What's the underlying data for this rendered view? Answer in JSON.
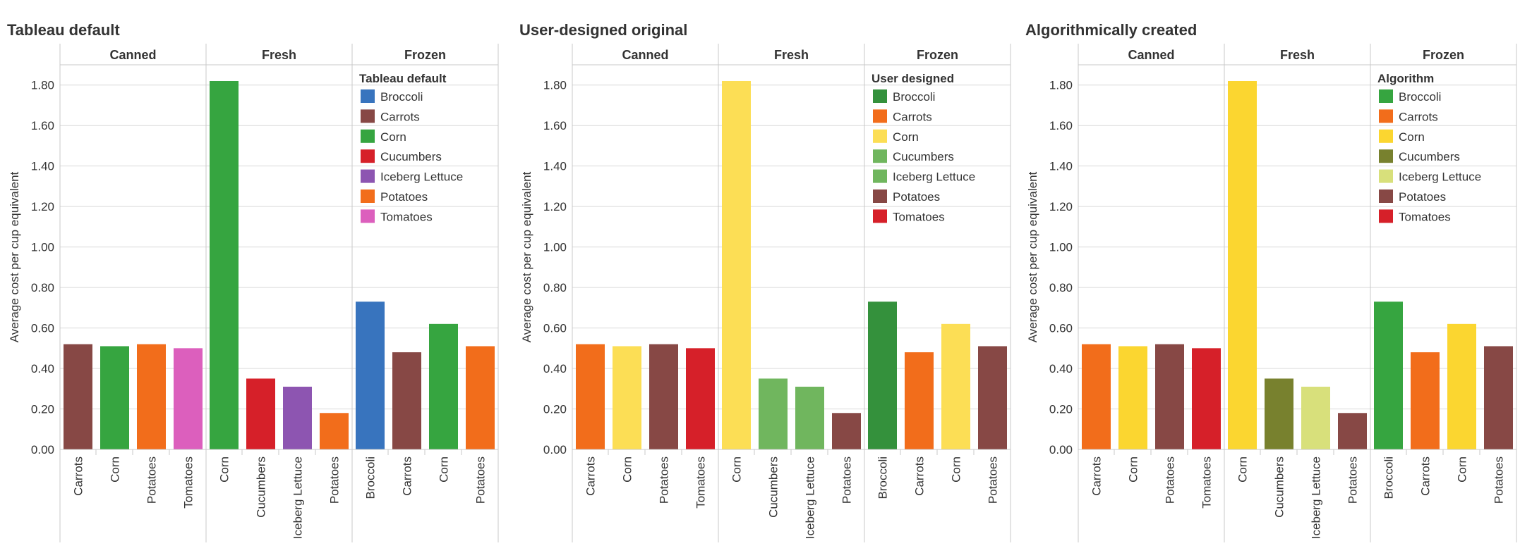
{
  "chart_data": [
    {
      "type": "bar",
      "title": "Tableau default",
      "ylabel": "Average cost per cup equivalent",
      "ylim": [
        0,
        1.9
      ],
      "yticks": [
        "0.00",
        "0.20",
        "0.40",
        "0.60",
        "0.80",
        "1.00",
        "1.20",
        "1.40",
        "1.60",
        "1.80"
      ],
      "legend": {
        "title": "Tableau default",
        "placement": "inside-right",
        "items": [
          {
            "label": "Broccoli",
            "color": "#3874be"
          },
          {
            "label": "Carrots",
            "color": "#874845"
          },
          {
            "label": "Corn",
            "color": "#36a540"
          },
          {
            "label": "Cucumbers",
            "color": "#d62029"
          },
          {
            "label": "Iceberg Lettuce",
            "color": "#8d55b1"
          },
          {
            "label": "Potatoes",
            "color": "#f26d1b"
          },
          {
            "label": "Tomatoes",
            "color": "#dc5fbd"
          }
        ]
      },
      "panels": [
        {
          "name": "Canned",
          "categories": [
            "Carrots",
            "Corn",
            "Potatoes",
            "Tomatoes"
          ],
          "values": [
            0.52,
            0.51,
            0.52,
            0.5
          ],
          "colors": [
            "#874845",
            "#36a540",
            "#f26d1b",
            "#dc5fbd"
          ]
        },
        {
          "name": "Fresh",
          "categories": [
            "Corn",
            "Cucumbers",
            "Iceberg Lettuce",
            "Potatoes"
          ],
          "values": [
            1.82,
            0.35,
            0.31,
            0.18
          ],
          "colors": [
            "#36a540",
            "#d62029",
            "#8d55b1",
            "#f26d1b"
          ]
        },
        {
          "name": "Frozen",
          "categories": [
            "Broccoli",
            "Carrots",
            "Corn",
            "Potatoes"
          ],
          "values": [
            0.73,
            0.48,
            0.62,
            0.51
          ],
          "colors": [
            "#3874be",
            "#874845",
            "#36a540",
            "#f26d1b"
          ]
        }
      ]
    },
    {
      "type": "bar",
      "title": "User-designed original",
      "ylabel": "Average cost per cup equivalent",
      "ylim": [
        0,
        1.9
      ],
      "yticks": [
        "0.00",
        "0.20",
        "0.40",
        "0.60",
        "0.80",
        "1.00",
        "1.20",
        "1.40",
        "1.60",
        "1.80"
      ],
      "legend": {
        "title": "User designed",
        "placement": "inside-right",
        "items": [
          {
            "label": "Broccoli",
            "color": "#34913c"
          },
          {
            "label": "Carrots",
            "color": "#f26d1b"
          },
          {
            "label": "Corn",
            "color": "#fcde55"
          },
          {
            "label": "Cucumbers",
            "color": "#70b65e"
          },
          {
            "label": "Iceberg Lettuce",
            "color": "#70b65e"
          },
          {
            "label": "Potatoes",
            "color": "#874845"
          },
          {
            "label": "Tomatoes",
            "color": "#d62029"
          }
        ]
      },
      "panels": [
        {
          "name": "Canned",
          "categories": [
            "Carrots",
            "Corn",
            "Potatoes",
            "Tomatoes"
          ],
          "values": [
            0.52,
            0.51,
            0.52,
            0.5
          ],
          "colors": [
            "#f26d1b",
            "#fcde55",
            "#874845",
            "#d62029"
          ]
        },
        {
          "name": "Fresh",
          "categories": [
            "Corn",
            "Cucumbers",
            "Iceberg Lettuce",
            "Potatoes"
          ],
          "values": [
            1.82,
            0.35,
            0.31,
            0.18
          ],
          "colors": [
            "#fcde55",
            "#70b65e",
            "#70b65e",
            "#874845"
          ]
        },
        {
          "name": "Frozen",
          "categories": [
            "Broccoli",
            "Carrots",
            "Corn",
            "Potatoes"
          ],
          "values": [
            0.73,
            0.48,
            0.62,
            0.51
          ],
          "colors": [
            "#34913c",
            "#f26d1b",
            "#fcde55",
            "#874845"
          ]
        }
      ]
    },
    {
      "type": "bar",
      "title": "Algorithmically created",
      "ylabel": "Average cost per cup equivalent",
      "ylim": [
        0,
        1.9
      ],
      "yticks": [
        "0.00",
        "0.20",
        "0.40",
        "0.60",
        "0.80",
        "1.00",
        "1.20",
        "1.40",
        "1.60",
        "1.80"
      ],
      "legend": {
        "title": "Algorithm",
        "placement": "inside-right",
        "items": [
          {
            "label": "Broccoli",
            "color": "#36a540"
          },
          {
            "label": "Carrots",
            "color": "#f26d1b"
          },
          {
            "label": "Corn",
            "color": "#fbd630"
          },
          {
            "label": "Cucumbers",
            "color": "#78812e"
          },
          {
            "label": "Iceberg Lettuce",
            "color": "#d8e07b"
          },
          {
            "label": "Potatoes",
            "color": "#874845"
          },
          {
            "label": "Tomatoes",
            "color": "#d62029"
          }
        ]
      },
      "panels": [
        {
          "name": "Canned",
          "categories": [
            "Carrots",
            "Corn",
            "Potatoes",
            "Tomatoes"
          ],
          "values": [
            0.52,
            0.51,
            0.52,
            0.5
          ],
          "colors": [
            "#f26d1b",
            "#fbd630",
            "#874845",
            "#d62029"
          ]
        },
        {
          "name": "Fresh",
          "categories": [
            "Corn",
            "Cucumbers",
            "Iceberg Lettuce",
            "Potatoes"
          ],
          "values": [
            1.82,
            0.35,
            0.31,
            0.18
          ],
          "colors": [
            "#fbd630",
            "#78812e",
            "#d8e07b",
            "#874845"
          ]
        },
        {
          "name": "Frozen",
          "categories": [
            "Broccoli",
            "Carrots",
            "Corn",
            "Potatoes"
          ],
          "values": [
            0.73,
            0.48,
            0.62,
            0.51
          ],
          "colors": [
            "#36a540",
            "#f26d1b",
            "#fbd630",
            "#874845"
          ]
        }
      ]
    }
  ]
}
